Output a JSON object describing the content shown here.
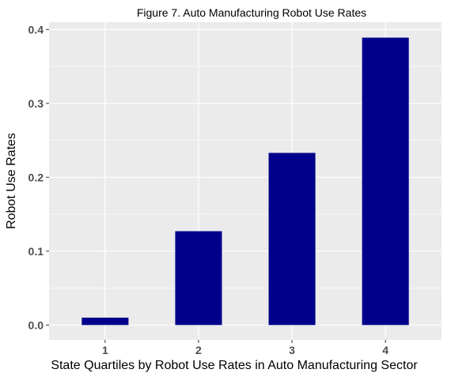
{
  "chart_data": {
    "type": "bar",
    "title": "Figure 7. Auto Manufacturing Robot Use Rates",
    "xlabel": "State Quartiles by Robot Use Rates in Auto Manufacturing Sector",
    "ylabel": "Robot Use Rates",
    "categories": [
      "1",
      "2",
      "3",
      "4"
    ],
    "values": [
      0.01,
      0.127,
      0.233,
      0.389
    ],
    "ylim": [
      -0.02,
      0.41
    ],
    "yticks": [
      0.0,
      0.1,
      0.2,
      0.3,
      0.4
    ],
    "ytick_labels": [
      "0.0",
      "0.1",
      "0.2",
      "0.3",
      "0.4"
    ],
    "grid": true,
    "bar_color": "#00008B",
    "panel_color": "#EBEBEB",
    "grid_color": "#FFFFFF"
  }
}
